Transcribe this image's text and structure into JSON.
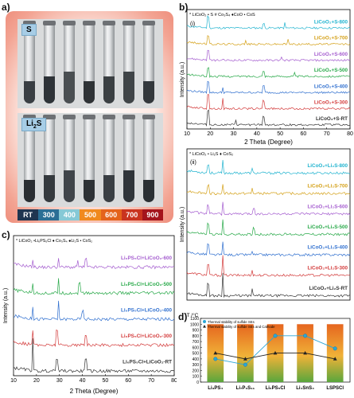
{
  "panel_a": {
    "label": "a)",
    "tag_top": "S",
    "tag_bottom": "Li",
    "tag_bottom_sub": "2",
    "tag_bottom_tail": "S",
    "temps": [
      "RT",
      "300",
      "400",
      "500",
      "600",
      "700",
      "900"
    ],
    "temp_colors": [
      "#1f3550",
      "#2b6f95",
      "#86c9d6",
      "#f08a1e",
      "#e4631c",
      "#c9341f",
      "#a4141c"
    ]
  },
  "panel_b": {
    "label": "b)",
    "top": {
      "roman": "(i)",
      "legend": "* LiCoO₂ • S # Co₃S₄ ♦CoO • CoS",
      "ylabel": "Intensity (a.u.)",
      "xlabel": "2 Theta (Degree)",
      "series": [
        {
          "name": "LiCoO₂+S-800",
          "color": "#1fb3cf"
        },
        {
          "name": "LiCoO₂+S-700",
          "color": "#d4a017"
        },
        {
          "name": "LiCoO₂+S-600",
          "color": "#a45ccf"
        },
        {
          "name": "LiCoO₂+S-500",
          "color": "#26a847"
        },
        {
          "name": "LiCoO₂+S-400",
          "color": "#2f6fcf"
        },
        {
          "name": "LiCoO₂+S-300",
          "color": "#d33a3a"
        },
        {
          "name": "LiCoO₂+S-RT",
          "color": "#333333"
        }
      ]
    },
    "bottom": {
      "roman": "(ii)",
      "legend": "* LiCoO₂ • Li₂S ♦ CoS₂",
      "ylabel": "Intensity (a.u.)",
      "xlabel": "2 Theta (Degree)",
      "series": [
        {
          "name": "LiCoO₂+Li₂S-800",
          "color": "#1fb3cf"
        },
        {
          "name": "LiCoO₂+Li₂S-700",
          "color": "#d4a017"
        },
        {
          "name": "LiCoO₂+Li₂S-600",
          "color": "#a45ccf"
        },
        {
          "name": "LiCoO₂+Li₂S-500",
          "color": "#26a847"
        },
        {
          "name": "LiCoO₂+Li₂S-400",
          "color": "#2f6fcf"
        },
        {
          "name": "LiCoO₂+Li₂S-300",
          "color": "#d33a3a"
        },
        {
          "name": "LiCoO₂+Li₂S-RT",
          "color": "#333333"
        }
      ]
    },
    "xticks": [
      "10",
      "20",
      "30",
      "40",
      "50",
      "60",
      "70",
      "80"
    ]
  },
  "panel_c": {
    "label": "c)",
    "legend": "* LiCoO₂ •Li₆PS₅Cl ♦ Co₃S₄ ●Li₂S • CoS₂",
    "ylabel": "Intensity (a.u.)",
    "xlabel": "2 Theta (Degree)",
    "xticks": [
      "10",
      "20",
      "30",
      "40",
      "50",
      "60",
      "70",
      "80"
    ],
    "series": [
      {
        "name": "Li₆PS₅Cl+LiCoO₂-600",
        "color": "#a45ccf"
      },
      {
        "name": "Li₆PS₅Cl+LiCoO₂-500",
        "color": "#26a847"
      },
      {
        "name": "Li₆PS₅Cl+LiCoO₂-400",
        "color": "#2f6fcf"
      },
      {
        "name": "Li₆PS₅Cl+LiCoO₂-300",
        "color": "#d33a3a"
      },
      {
        "name": "Li₆PS₅Cl+LiCoO₂-RT",
        "color": "#333333"
      }
    ]
  },
  "chart_data": {
    "type": "bar",
    "title": "",
    "xlabel": "",
    "ylabel": "T /°C",
    "categories": [
      "Li₃PS₄",
      "Li₇P₃S₁₁",
      "Li₆PS₅Cl",
      "Li₄SnS₄",
      "LSPSCl"
    ],
    "ylim": [
      0,
      1100
    ],
    "yticks": [
      0,
      100,
      200,
      300,
      400,
      500,
      600,
      700,
      800,
      900,
      1000,
      1100
    ],
    "bar_values": [
      1000,
      1000,
      1000,
      1000,
      1000
    ],
    "series": [
      {
        "name": "Thermal stability of sulfide SEs",
        "values": [
          400,
          300,
          800,
          800,
          580
        ],
        "color": "#2aa6d6"
      },
      {
        "name": "Thermal stability of sulfide SEs and Cathode",
        "values": [
          500,
          400,
          500,
          500,
          400
        ],
        "color": "#222222"
      }
    ]
  },
  "panel_d": {
    "label": "d)"
  }
}
